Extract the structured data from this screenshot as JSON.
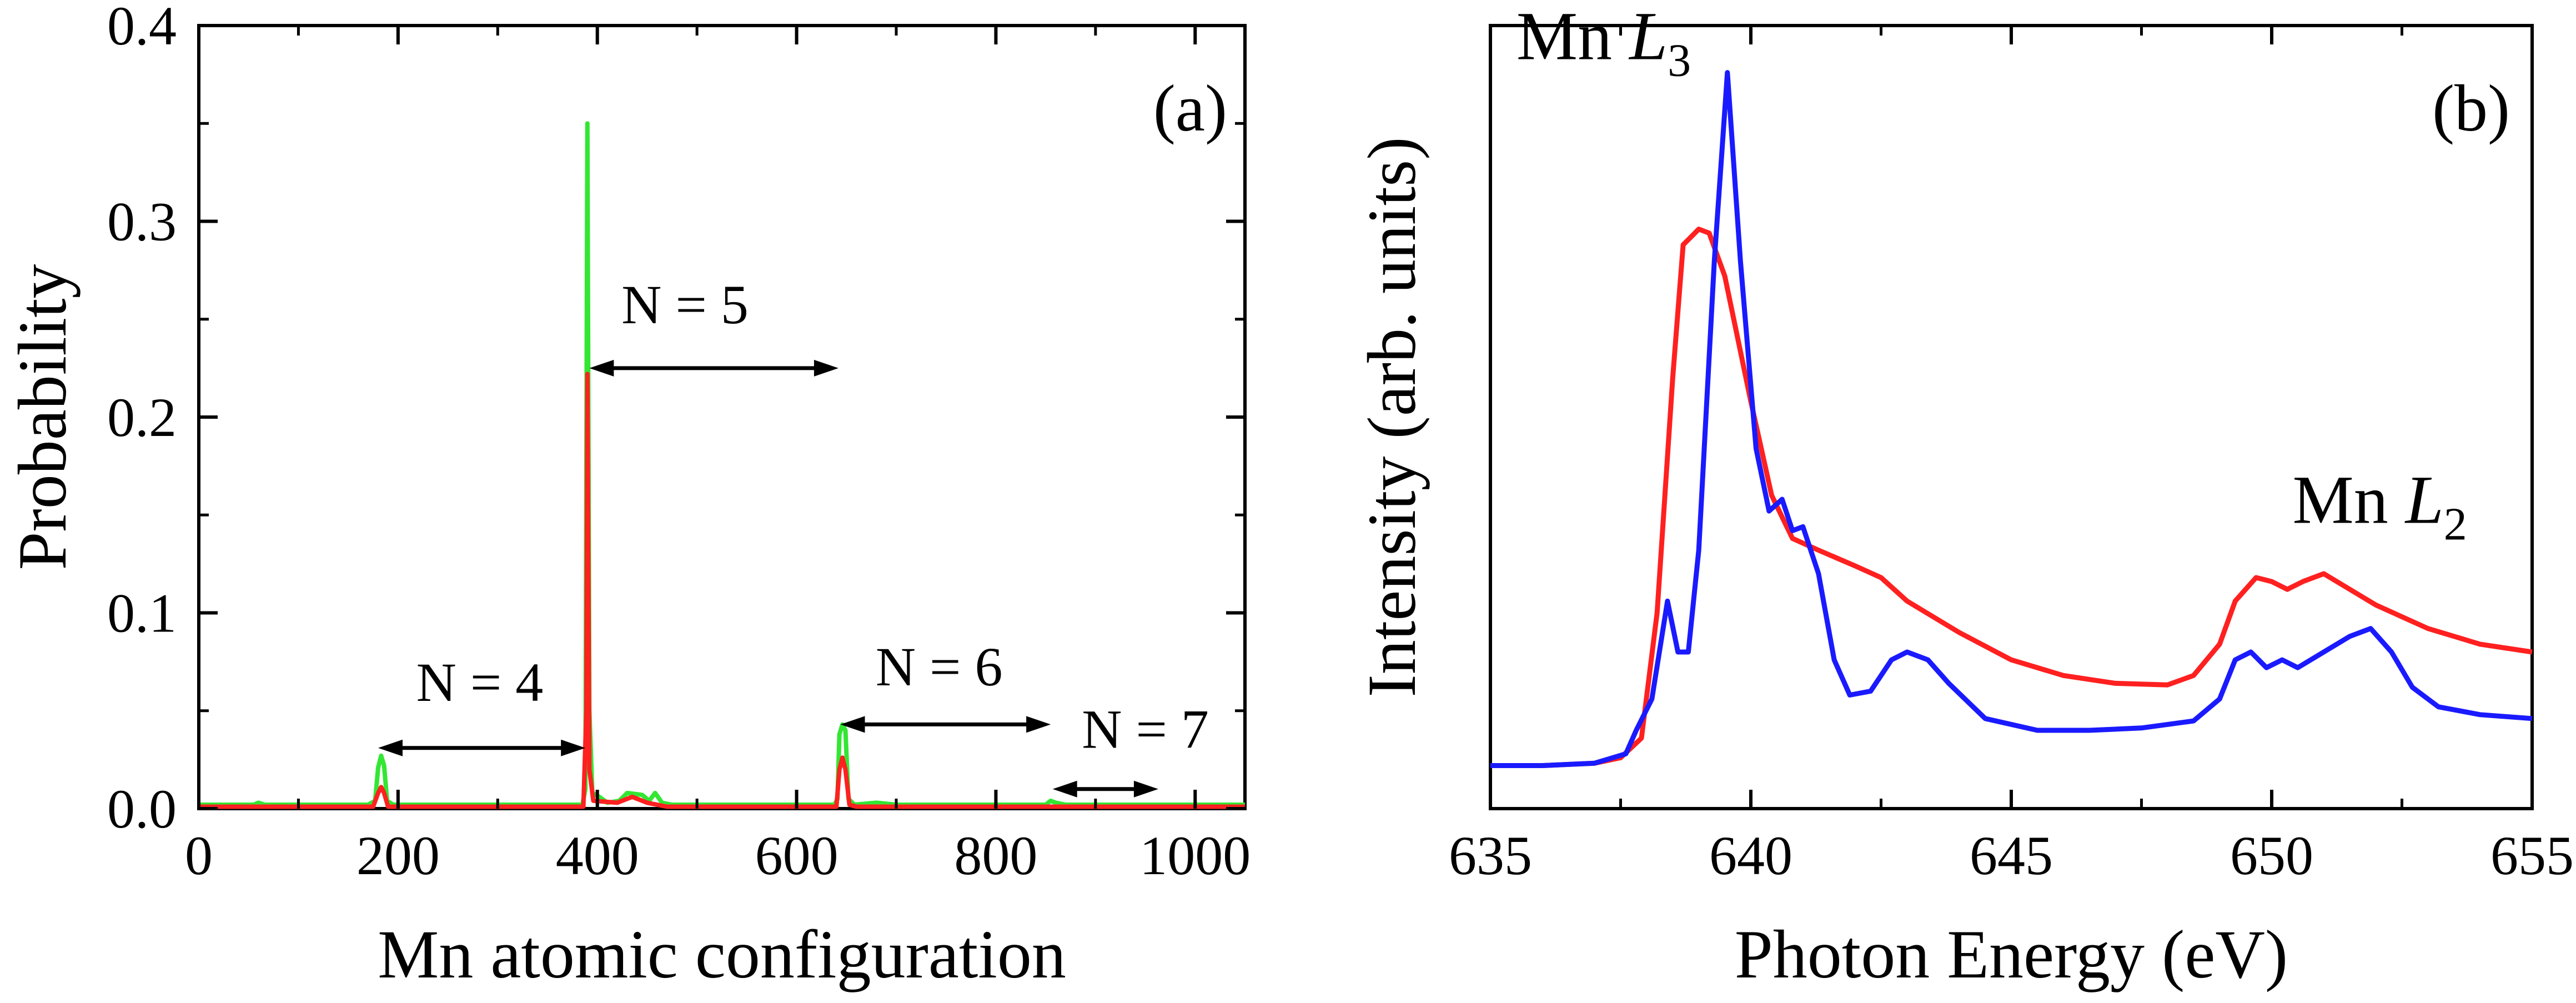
{
  "figure_colors": {
    "green": "#33e633",
    "red": "#ff2020",
    "blue": "#1a1aff",
    "axis": "#000000"
  },
  "chart_data": [
    {
      "type": "line",
      "panel_label": "(a)",
      "xlabel": "Mn atomic configuration",
      "ylabel": "Probability",
      "xlim": [
        0,
        1050
      ],
      "ylim": [
        0,
        0.4
      ],
      "xticks": [
        "0",
        "200",
        "400",
        "600",
        "800",
        "1000"
      ],
      "yticks": [
        "0.0",
        "0.1",
        "0.2",
        "0.3",
        "0.4"
      ],
      "grid": false,
      "annotations": [
        {
          "text": "N = 4",
          "x": 282,
          "y": 0.055,
          "from": 180,
          "to": 388,
          "arrow_y": 0.031
        },
        {
          "text": "N = 5",
          "x": 488,
          "y": 0.248,
          "from": 392,
          "to": 642,
          "arrow_y": 0.225
        },
        {
          "text": "N = 6",
          "x": 743,
          "y": 0.063,
          "from": 644,
          "to": 855,
          "arrow_y": 0.043
        },
        {
          "text": "N = 7",
          "x": 950,
          "y": 0.031,
          "from": 857,
          "to": 963,
          "arrow_y": 0.01
        }
      ],
      "series": [
        {
          "color": "green",
          "points": [
            [
              0,
              0.002
            ],
            [
              55,
              0.002
            ],
            [
              60,
              0.003
            ],
            [
              66,
              0.002
            ],
            [
              170,
              0.002
            ],
            [
              177,
              0.004
            ],
            [
              180,
              0.021
            ],
            [
              183,
              0.027
            ],
            [
              186,
              0.022
            ],
            [
              189,
              0.004
            ],
            [
              195,
              0.002
            ],
            [
              385,
              0.002
            ],
            [
              388,
              0.01
            ],
            [
              390,
              0.35
            ],
            [
              392,
              0.05
            ],
            [
              395,
              0.008
            ],
            [
              402,
              0.006
            ],
            [
              410,
              0.003
            ],
            [
              422,
              0.004
            ],
            [
              430,
              0.008
            ],
            [
              445,
              0.007
            ],
            [
              452,
              0.004
            ],
            [
              458,
              0.008
            ],
            [
              465,
              0.003
            ],
            [
              475,
              0.002
            ],
            [
              638,
              0.002
            ],
            [
              641,
              0.005
            ],
            [
              643,
              0.038
            ],
            [
              646,
              0.043
            ],
            [
              649,
              0.04
            ],
            [
              652,
              0.005
            ],
            [
              658,
              0.002
            ],
            [
              680,
              0.003
            ],
            [
              700,
              0.002
            ],
            [
              850,
              0.002
            ],
            [
              855,
              0.004
            ],
            [
              860,
              0.003
            ],
            [
              870,
              0.002
            ],
            [
              1050,
              0.002
            ]
          ]
        },
        {
          "color": "red",
          "points": [
            [
              0,
              0.001
            ],
            [
              175,
              0.001
            ],
            [
              180,
              0.008
            ],
            [
              183,
              0.011
            ],
            [
              186,
              0.008
            ],
            [
              190,
              0.001
            ],
            [
              386,
              0.001
            ],
            [
              389,
              0.05
            ],
            [
              390,
              0.222
            ],
            [
              392,
              0.02
            ],
            [
              396,
              0.004
            ],
            [
              420,
              0.003
            ],
            [
              435,
              0.006
            ],
            [
              450,
              0.003
            ],
            [
              470,
              0.001
            ],
            [
              640,
              0.001
            ],
            [
              643,
              0.02
            ],
            [
              646,
              0.026
            ],
            [
              649,
              0.02
            ],
            [
              653,
              0.002
            ],
            [
              660,
              0.001
            ],
            [
              1050,
              0.001
            ]
          ]
        }
      ]
    },
    {
      "type": "line",
      "panel_label": "(b)",
      "xlabel": "Photon Energy (eV)",
      "ylabel": "Intensity (arb. units)",
      "xlim": [
        635,
        655
      ],
      "ylim": [
        0,
        1
      ],
      "xticks": [
        "635",
        "640",
        "645",
        "650",
        "655"
      ],
      "yticks": [],
      "grid": false,
      "annotations": [
        {
          "prefix": "Mn ",
          "italic": "L",
          "sub": "3",
          "x": 635.5,
          "y": 0.957
        },
        {
          "prefix": "Mn ",
          "italic": "L",
          "sub": "2",
          "x": 650.4,
          "y": 0.365
        }
      ],
      "series": [
        {
          "color": "red",
          "points": [
            [
              635,
              0.055
            ],
            [
              636,
              0.055
            ],
            [
              637,
              0.058
            ],
            [
              637.5,
              0.065
            ],
            [
              637.9,
              0.09
            ],
            [
              638.2,
              0.25
            ],
            [
              638.5,
              0.55
            ],
            [
              638.7,
              0.72
            ],
            [
              639,
              0.74
            ],
            [
              639.2,
              0.735
            ],
            [
              639.5,
              0.68
            ],
            [
              640,
              0.52
            ],
            [
              640.4,
              0.4
            ],
            [
              640.8,
              0.345
            ],
            [
              641.3,
              0.33
            ],
            [
              642,
              0.31
            ],
            [
              642.5,
              0.295
            ],
            [
              643,
              0.265
            ],
            [
              644,
              0.225
            ],
            [
              645,
              0.19
            ],
            [
              646,
              0.17
            ],
            [
              647,
              0.16
            ],
            [
              648,
              0.158
            ],
            [
              648.5,
              0.17
            ],
            [
              649,
              0.21
            ],
            [
              649.3,
              0.265
            ],
            [
              649.7,
              0.295
            ],
            [
              650,
              0.29
            ],
            [
              650.3,
              0.28
            ],
            [
              650.6,
              0.29
            ],
            [
              651,
              0.3
            ],
            [
              651.5,
              0.28
            ],
            [
              652,
              0.26
            ],
            [
              653,
              0.23
            ],
            [
              654,
              0.21
            ],
            [
              655,
              0.2
            ]
          ]
        },
        {
          "color": "blue",
          "points": [
            [
              635,
              0.055
            ],
            [
              636,
              0.055
            ],
            [
              637,
              0.058
            ],
            [
              637.6,
              0.07
            ],
            [
              637.8,
              0.1
            ],
            [
              638.1,
              0.14
            ],
            [
              638.4,
              0.265
            ],
            [
              638.6,
              0.2
            ],
            [
              638.8,
              0.2
            ],
            [
              639,
              0.33
            ],
            [
              639.3,
              0.7
            ],
            [
              639.55,
              0.94
            ],
            [
              639.8,
              0.7
            ],
            [
              640.1,
              0.46
            ],
            [
              640.35,
              0.38
            ],
            [
              640.6,
              0.395
            ],
            [
              640.8,
              0.355
            ],
            [
              641,
              0.36
            ],
            [
              641.3,
              0.3
            ],
            [
              641.6,
              0.19
            ],
            [
              641.9,
              0.145
            ],
            [
              642.3,
              0.15
            ],
            [
              642.7,
              0.19
            ],
            [
              643,
              0.2
            ],
            [
              643.4,
              0.19
            ],
            [
              643.8,
              0.16
            ],
            [
              644.5,
              0.115
            ],
            [
              645.5,
              0.1
            ],
            [
              646.5,
              0.1
            ],
            [
              647.5,
              0.103
            ],
            [
              648.5,
              0.112
            ],
            [
              649,
              0.14
            ],
            [
              649.3,
              0.19
            ],
            [
              649.6,
              0.2
            ],
            [
              649.9,
              0.18
            ],
            [
              650.2,
              0.19
            ],
            [
              650.5,
              0.18
            ],
            [
              651,
              0.2
            ],
            [
              651.5,
              0.22
            ],
            [
              651.9,
              0.23
            ],
            [
              652.3,
              0.2
            ],
            [
              652.7,
              0.155
            ],
            [
              653.2,
              0.13
            ],
            [
              654,
              0.12
            ],
            [
              655,
              0.115
            ]
          ]
        }
      ]
    }
  ]
}
